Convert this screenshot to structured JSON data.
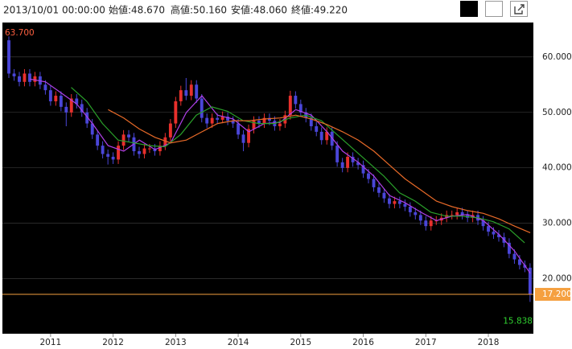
{
  "header": {
    "date": "2013/10/01 00:00:00",
    "items": [
      "始値:48.670",
      "高値:50.160",
      "安値:48.060",
      "終値:49.220"
    ]
  },
  "chart_data": {
    "type": "candlestick",
    "x": [
      2010.333,
      2010.417,
      2010.5,
      2010.583,
      2010.667,
      2010.75,
      2010.833,
      2010.917,
      2011,
      2011.083,
      2011.167,
      2011.25,
      2011.333,
      2011.417,
      2011.5,
      2011.583,
      2011.667,
      2011.75,
      2011.833,
      2011.917,
      2012,
      2012.083,
      2012.167,
      2012.25,
      2012.333,
      2012.417,
      2012.5,
      2012.583,
      2012.667,
      2012.75,
      2012.833,
      2012.917,
      2013,
      2013.083,
      2013.167,
      2013.25,
      2013.333,
      2013.417,
      2013.5,
      2013.583,
      2013.667,
      2013.75,
      2013.833,
      2013.917,
      2014,
      2014.083,
      2014.167,
      2014.25,
      2014.333,
      2014.417,
      2014.5,
      2014.583,
      2014.667,
      2014.75,
      2014.833,
      2014.917,
      2015,
      2015.083,
      2015.167,
      2015.25,
      2015.333,
      2015.417,
      2015.5,
      2015.583,
      2015.667,
      2015.75,
      2015.833,
      2015.917,
      2016,
      2016.083,
      2016.167,
      2016.25,
      2016.333,
      2016.417,
      2016.5,
      2016.583,
      2016.667,
      2016.75,
      2016.833,
      2016.917,
      2017,
      2017.083,
      2017.167,
      2017.25,
      2017.333,
      2017.417,
      2017.5,
      2017.583,
      2017.667,
      2017.75,
      2017.833,
      2017.917,
      2018,
      2018.083,
      2018.167,
      2018.25,
      2018.333,
      2018.417,
      2018.5,
      2018.583,
      2018.667
    ],
    "open": [
      63,
      57,
      56.5,
      55.5,
      57,
      55.5,
      56.5,
      55,
      54,
      52,
      53,
      51,
      50,
      52.5,
      51.5,
      50,
      48,
      46,
      44,
      42.5,
      42,
      41.5,
      44,
      46,
      45.5,
      43,
      42.5,
      43.5,
      43.5,
      43,
      44,
      45.5,
      48,
      52,
      54,
      53,
      55,
      52.5,
      49,
      48,
      49,
      48.67,
      49.22,
      48.5,
      48,
      46,
      44.5,
      47,
      48.5,
      48,
      49,
      48.5,
      47.5,
      48,
      49.5,
      53,
      51.5,
      50,
      49,
      47.5,
      46.5,
      45,
      46.5,
      44,
      41,
      40,
      42,
      41,
      40.5,
      39,
      38,
      36.5,
      35.5,
      34.5,
      33.5,
      34,
      33.5,
      33,
      32,
      31.5,
      30.5,
      29.5,
      30.5,
      30.5,
      31,
      31.5,
      31.5,
      32,
      31.5,
      31,
      31.5,
      30.5,
      29.5,
      28.5,
      28,
      27.5,
      26.5,
      24.5,
      23.5,
      22.5,
      22
    ],
    "high": [
      63.7,
      57.8,
      57.3,
      57.8,
      57.8,
      57.3,
      57.3,
      55.8,
      54.8,
      53.8,
      53.8,
      51.8,
      53.3,
      53.3,
      52.3,
      50.8,
      48.8,
      46.8,
      44.8,
      43.3,
      42.8,
      44.8,
      46.8,
      46.8,
      46.3,
      43.8,
      44.3,
      44.3,
      44.3,
      44.8,
      46.3,
      48.8,
      52.8,
      54.8,
      56.2,
      55.8,
      55.8,
      53.3,
      49.8,
      49.8,
      49.8,
      50.16,
      50,
      49.3,
      48.8,
      46.8,
      47.8,
      49.3,
      49.3,
      49.8,
      49.8,
      49.3,
      48.8,
      50.3,
      53.9,
      53.8,
      52.3,
      50.8,
      49.8,
      48.3,
      47.3,
      47.3,
      47.3,
      44.8,
      41.8,
      42.8,
      42.8,
      41.8,
      41.3,
      39.8,
      38.8,
      37.3,
      36.3,
      35.3,
      34.8,
      34.8,
      34.3,
      33.8,
      32.8,
      32.3,
      31.3,
      31.3,
      31.3,
      31.8,
      32.3,
      32.3,
      32.8,
      32.8,
      32.3,
      32.3,
      32.3,
      31.3,
      30.3,
      29.3,
      28.8,
      28.3,
      27.3,
      25.3,
      24.3,
      23.3,
      22.8
    ],
    "low": [
      56.2,
      55.7,
      54.7,
      54.7,
      54.7,
      54.7,
      54.2,
      53.2,
      51.2,
      51.2,
      50.2,
      47.5,
      49.2,
      50.7,
      49.2,
      47.2,
      45.2,
      43.2,
      41.7,
      40.6,
      40.7,
      40.7,
      43.2,
      44.7,
      42.2,
      41.7,
      41.7,
      42.7,
      42.2,
      42.2,
      43.2,
      44.7,
      47.2,
      51.2,
      52.2,
      52.2,
      51.7,
      48.2,
      47.2,
      47.2,
      47.87,
      48.06,
      47.7,
      47.2,
      45.2,
      43,
      43.7,
      46.2,
      47.2,
      47.2,
      47.7,
      46.7,
      46.7,
      47.2,
      48.7,
      50.7,
      49.2,
      48.2,
      46.7,
      45.7,
      44.2,
      44.2,
      43.2,
      40.2,
      39.2,
      39.2,
      40.2,
      39.7,
      38.2,
      37.2,
      35.7,
      34.7,
      33.7,
      32.7,
      32.7,
      32.7,
      32.2,
      31.2,
      30.7,
      29.7,
      28.7,
      28.7,
      29.7,
      29.7,
      30.2,
      30.7,
      30.7,
      30.7,
      30.2,
      30.2,
      29.7,
      28.7,
      27.7,
      27.2,
      26.7,
      25.7,
      23.7,
      22.7,
      21.7,
      21.2,
      15.838
    ],
    "close": [
      57,
      56.5,
      55.5,
      57,
      55.5,
      56.5,
      55,
      54,
      52,
      53,
      51,
      50,
      52.5,
      51.5,
      50,
      48,
      46,
      44,
      42.5,
      42,
      41.5,
      44,
      46,
      45.5,
      43,
      42.5,
      43.5,
      43.5,
      43,
      44,
      45.5,
      48,
      52,
      54,
      53,
      55,
      52.5,
      49,
      48,
      49,
      48.67,
      49.22,
      48.5,
      48,
      46,
      44.5,
      47,
      48.5,
      48,
      49,
      48.5,
      47.5,
      48,
      49.5,
      53,
      51.5,
      50,
      49,
      47.5,
      46.5,
      45,
      46.5,
      44,
      41,
      40,
      42,
      41,
      40.5,
      39,
      38,
      36.5,
      35.5,
      34.5,
      33.5,
      34,
      33.5,
      33,
      32,
      31.5,
      30.5,
      29.5,
      30.5,
      30.5,
      31,
      31.5,
      31.5,
      32,
      31.5,
      31,
      31.5,
      30.5,
      29.5,
      28.5,
      28,
      27.5,
      26.5,
      24.5,
      23.5,
      22.5,
      22,
      17.2
    ],
    "up_color": "#e8302c",
    "down_color": "#4a46d8",
    "lines": [
      {
        "color": "#b040e8",
        "x": [
          2010.67,
          2010.92,
          2011.17,
          2011.42,
          2011.67,
          2011.92,
          2012.17,
          2012.42,
          2012.67,
          2012.92,
          2013.17,
          2013.42,
          2013.67,
          2013.92,
          2014.17,
          2014.42,
          2014.67,
          2014.92,
          2015.17,
          2015.42,
          2015.67,
          2015.92,
          2016.17,
          2016.42,
          2016.67,
          2016.92,
          2017.17,
          2017.42,
          2017.67,
          2017.92,
          2018.17,
          2018.42,
          2018.67
        ],
        "values": [
          56,
          55.5,
          53.5,
          51.5,
          48,
          44,
          43,
          45,
          43.3,
          44.5,
          50,
          53,
          49.5,
          48.8,
          46.5,
          48,
          48.2,
          50.5,
          49.5,
          46.5,
          43,
          41,
          38.5,
          35,
          33.7,
          32,
          30.5,
          31.3,
          31.6,
          30.5,
          28,
          25,
          21
        ]
      },
      {
        "color": "#2aa02a",
        "x": [
          2011.33,
          2011.58,
          2011.83,
          2012.08,
          2012.33,
          2012.58,
          2012.83,
          2013.08,
          2013.33,
          2013.58,
          2013.83,
          2014.08,
          2014.33,
          2014.58,
          2014.83,
          2015.08,
          2015.33,
          2015.58,
          2015.83,
          2016.08,
          2016.33,
          2016.58,
          2016.83,
          2017.08,
          2017.33,
          2017.58,
          2017.83,
          2018.08,
          2018.33,
          2018.58
        ],
        "values": [
          54.5,
          52,
          48,
          45,
          44.5,
          44,
          43.8,
          46,
          49.5,
          51,
          50.2,
          48.5,
          48,
          48,
          49,
          49.5,
          48.5,
          46,
          43.5,
          41,
          38.5,
          35.5,
          34,
          32,
          31.3,
          31.3,
          31,
          30.3,
          29,
          26.5
        ]
      },
      {
        "color": "#e86a28",
        "x": [
          2011.92,
          2012.17,
          2012.42,
          2012.67,
          2012.92,
          2013.17,
          2013.42,
          2013.67,
          2013.92,
          2014.17,
          2014.42,
          2014.67,
          2014.92,
          2015.17,
          2015.42,
          2015.67,
          2015.92,
          2016.17,
          2016.42,
          2016.67,
          2016.92,
          2017.17,
          2017.42,
          2017.67,
          2017.92,
          2018.17,
          2018.42,
          2018.67
        ],
        "values": [
          50.5,
          49,
          47,
          45.5,
          44.5,
          45,
          46.5,
          48,
          48.5,
          48.5,
          48.8,
          49,
          49.5,
          48.8,
          47.8,
          46.5,
          45,
          43,
          40.5,
          38,
          36,
          34,
          33,
          32.3,
          31.8,
          30.8,
          29.5,
          28.3
        ]
      }
    ],
    "xlim": [
      2010.23,
      2018.72
    ],
    "xticks": [
      2011,
      2012,
      2013,
      2014,
      2015,
      2016,
      2017,
      2018
    ],
    "ylim": [
      10.1,
      66.2
    ],
    "yticks": [
      {
        "value": 20,
        "label": "20.000"
      },
      {
        "value": 30,
        "label": "30.000"
      },
      {
        "value": 40,
        "label": "40.000"
      },
      {
        "value": 50,
        "label": "50.000"
      },
      {
        "value": 60,
        "label": "60.000"
      }
    ],
    "grid": true,
    "max_marker": {
      "value": 63.7,
      "label": "63.700",
      "color": "#ff6040"
    },
    "min_marker": {
      "value": 15.838,
      "label": "15.838",
      "color": "#30d030"
    },
    "last_price": {
      "value": 17.2,
      "label": "17.200",
      "color": "#f5a040"
    }
  }
}
